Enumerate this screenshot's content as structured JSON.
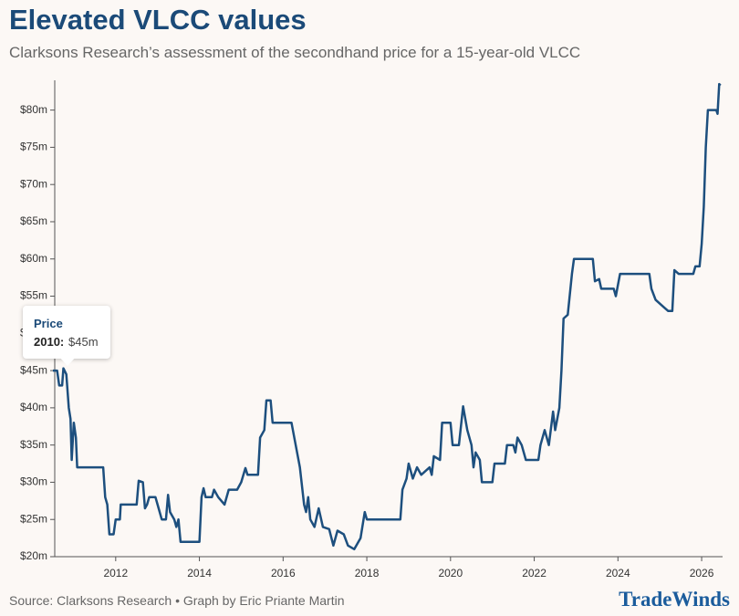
{
  "chart_data": {
    "type": "line",
    "title": "Elevated VLCC values",
    "subtitle": "Clarksons Research’s assessment of the secondhand price for a 15-year-old VLCC",
    "source": "Source: Clarksons Research • Graph by Eric Priante Martin",
    "brand": "TradeWinds",
    "tooltip": {
      "title": "Price",
      "label": "2010:",
      "value": "$45m"
    },
    "color": "#1d4f7e",
    "xlim": [
      2010.5,
      2026.5
    ],
    "xticks": [
      2012,
      2014,
      2016,
      2018,
      2020,
      2022,
      2024,
      2026
    ],
    "ylim": [
      20,
      84
    ],
    "yticks": [
      {
        "value": 20,
        "label": "$20m"
      },
      {
        "value": 25,
        "label": "$25m"
      },
      {
        "value": 30,
        "label": "$30m"
      },
      {
        "value": 35,
        "label": "$35m"
      },
      {
        "value": 40,
        "label": "$40m"
      },
      {
        "value": 45,
        "label": "$45m"
      },
      {
        "value": 50,
        "label": "$50m"
      },
      {
        "value": 55,
        "label": "$55m"
      },
      {
        "value": 60,
        "label": "$60m"
      },
      {
        "value": 65,
        "label": "$65m"
      },
      {
        "value": 70,
        "label": "$70m"
      },
      {
        "value": 75,
        "label": "$75m"
      },
      {
        "value": 80,
        "label": "$80m"
      }
    ],
    "x": [
      2010.5,
      2010.6,
      2010.65,
      2010.72,
      2010.75,
      2010.82,
      2010.88,
      2010.92,
      2010.95,
      2011.0,
      2011.05,
      2011.08,
      2011.7,
      2011.75,
      2011.8,
      2011.85,
      2011.95,
      2012.0,
      2012.1,
      2012.12,
      2012.5,
      2012.55,
      2012.65,
      2012.7,
      2012.75,
      2012.8,
      2012.95,
      2013.0,
      2013.1,
      2013.2,
      2013.25,
      2013.3,
      2013.4,
      2013.45,
      2013.5,
      2013.55,
      2014.0,
      2014.05,
      2014.1,
      2014.15,
      2014.3,
      2014.35,
      2014.45,
      2014.6,
      2014.7,
      2014.9,
      2015.0,
      2015.1,
      2015.15,
      2015.4,
      2015.45,
      2015.55,
      2015.6,
      2015.7,
      2015.75,
      2016.2,
      2016.3,
      2016.4,
      2016.5,
      2016.55,
      2016.6,
      2016.65,
      2016.75,
      2016.85,
      2016.95,
      2017.1,
      2017.2,
      2017.3,
      2017.45,
      2017.55,
      2017.7,
      2017.85,
      2017.95,
      2018.0,
      2018.8,
      2018.85,
      2018.95,
      2019.0,
      2019.1,
      2019.2,
      2019.3,
      2019.4,
      2019.5,
      2019.55,
      2019.6,
      2019.75,
      2019.8,
      2020.0,
      2020.05,
      2020.2,
      2020.3,
      2020.4,
      2020.5,
      2020.55,
      2020.6,
      2020.7,
      2020.75,
      2021.0,
      2021.05,
      2021.3,
      2021.35,
      2021.5,
      2021.55,
      2021.6,
      2021.7,
      2021.8,
      2022.1,
      2022.15,
      2022.25,
      2022.35,
      2022.45,
      2022.5,
      2022.6,
      2022.65,
      2022.7,
      2022.8,
      2022.9,
      2022.95,
      2023.4,
      2023.45,
      2023.55,
      2023.6,
      2023.9,
      2023.95,
      2024.05,
      2024.75,
      2024.8,
      2024.9,
      2025.0,
      2025.1,
      2025.2,
      2025.3,
      2025.35,
      2025.45,
      2025.8,
      2025.85,
      2025.95,
      2026.0,
      2026.05,
      2026.1,
      2026.15,
      2026.35,
      2026.38,
      2026.42,
      2026.45
    ],
    "values": [
      45,
      45,
      43,
      43,
      45.3,
      44.5,
      40,
      38.5,
      33,
      38,
      36,
      32,
      32,
      28,
      27,
      23,
      23,
      25,
      25,
      27,
      27,
      30.2,
      30,
      26.5,
      27,
      28,
      28,
      27,
      25,
      25,
      28.3,
      26,
      25,
      24,
      25,
      22,
      22,
      28,
      29.2,
      28,
      28,
      29,
      28,
      27,
      29,
      29,
      30,
      31.9,
      31,
      31,
      36,
      37,
      41,
      41,
      38,
      38,
      35,
      32,
      27,
      26,
      28,
      25,
      24,
      26.5,
      24,
      23.7,
      21.5,
      23.5,
      23,
      21.5,
      21,
      22.5,
      26,
      25,
      25,
      29,
      30.5,
      32.5,
      30.5,
      32,
      31,
      31.5,
      32,
      31,
      33.5,
      33,
      38,
      38,
      35,
      35,
      40.2,
      37,
      35,
      32,
      34,
      33,
      30,
      30,
      32.5,
      32.5,
      35,
      35,
      34,
      36,
      35,
      33,
      33,
      35,
      37,
      35,
      39.5,
      37,
      40,
      45,
      52,
      52.5,
      58,
      60,
      60,
      57,
      57.3,
      56,
      56,
      55,
      58,
      58,
      56,
      54.5,
      54,
      53.5,
      53,
      53,
      58.5,
      58,
      58,
      59,
      59,
      62,
      67,
      75,
      80,
      80,
      79.5,
      83.5,
      83.3
    ]
  }
}
